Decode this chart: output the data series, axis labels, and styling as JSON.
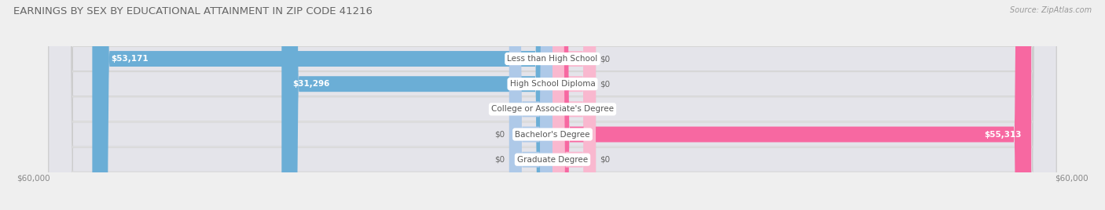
{
  "title": "EARNINGS BY SEX BY EDUCATIONAL ATTAINMENT IN ZIP CODE 41216",
  "source": "Source: ZipAtlas.com",
  "categories": [
    "Less than High School",
    "High School Diploma",
    "College or Associate's Degree",
    "Bachelor's Degree",
    "Graduate Degree"
  ],
  "male_values": [
    53171,
    31296,
    0,
    0,
    0
  ],
  "female_values": [
    0,
    0,
    0,
    55313,
    0
  ],
  "small_bar_value": 5000,
  "male_color": "#6baed6",
  "female_color": "#f768a1",
  "male_color_light": "#aec9e8",
  "female_color_light": "#f9b8cf",
  "bar_height": 0.62,
  "xlim": 60000,
  "bg_color": "#efefef",
  "row_bg_color": "#e4e4ea",
  "title_color": "#666666",
  "source_color": "#999999",
  "label_color_white": "#ffffff",
  "label_color_dark": "#666666",
  "label_fontsize": 7.5,
  "tick_fontsize": 7.5,
  "category_fontsize": 7.5,
  "title_fontsize": 9.5
}
